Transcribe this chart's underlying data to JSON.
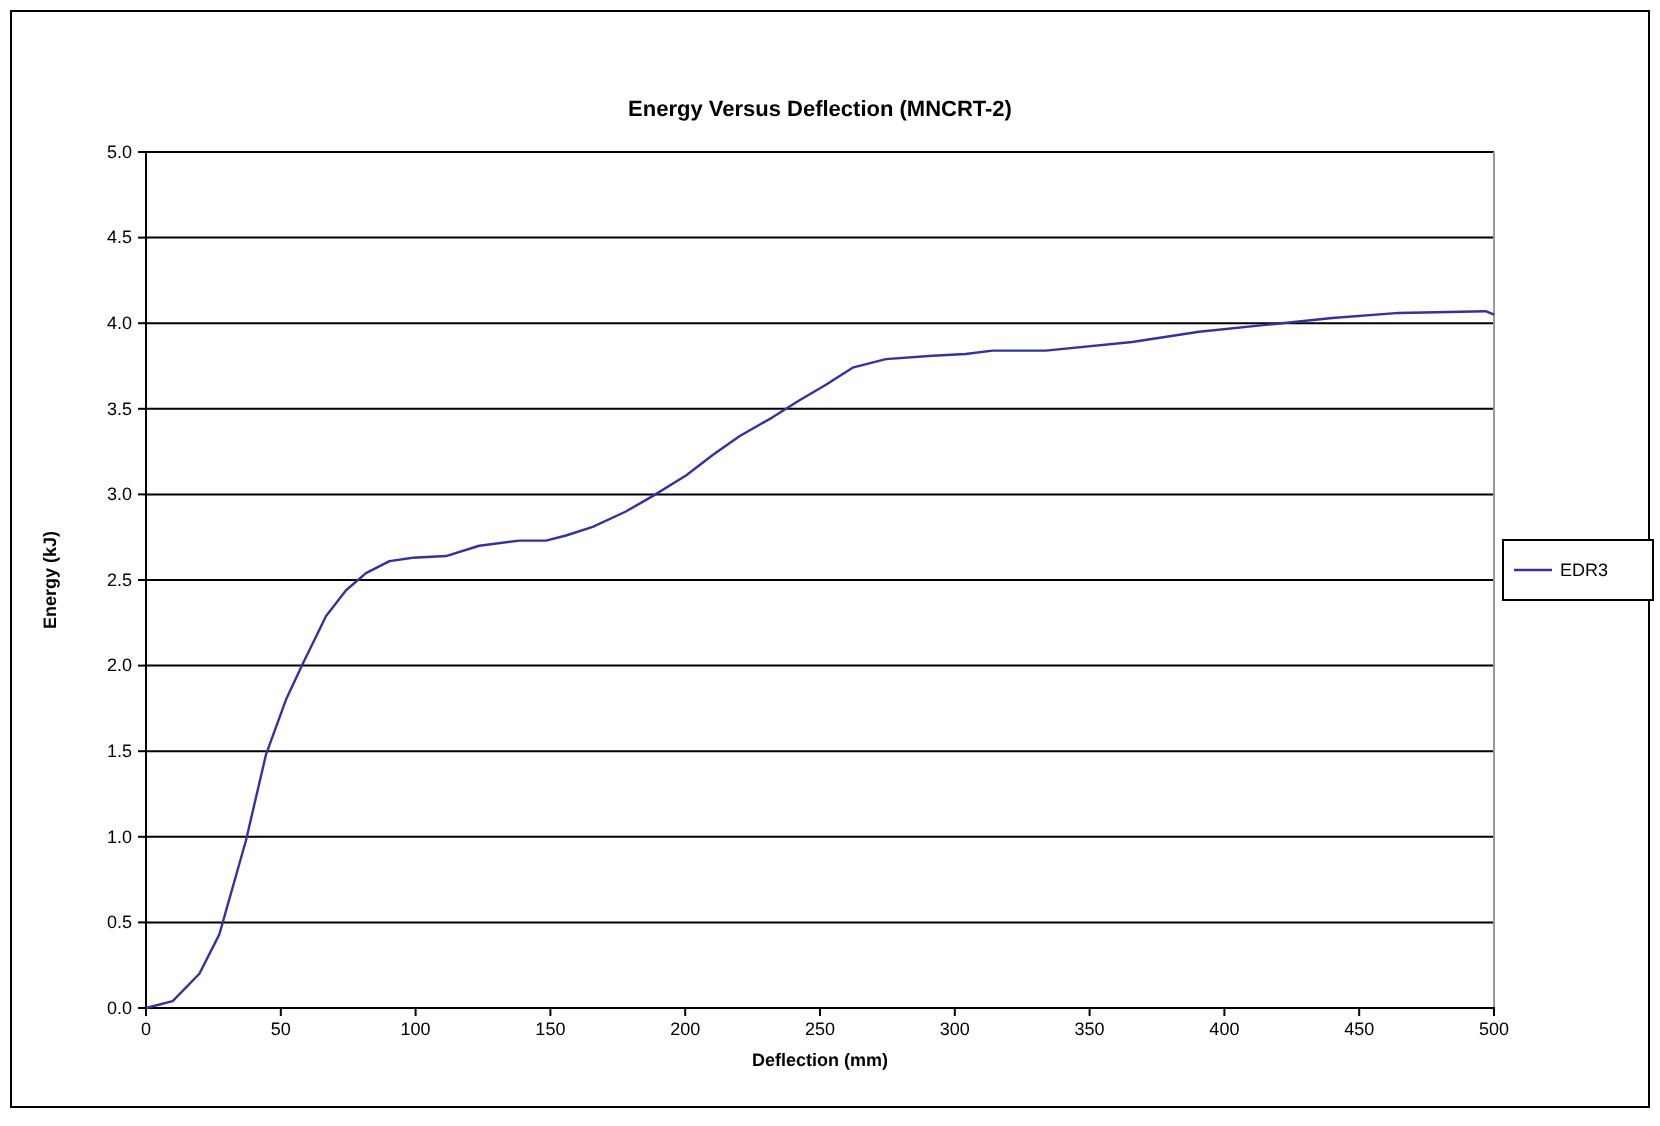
{
  "chart_data": {
    "type": "line",
    "title": "Energy Versus Deflection (MNCRT-2)",
    "xlabel": "Deflection (mm)",
    "ylabel": "Energy (kJ)",
    "x": [
      0,
      9.9,
      19.8,
      27.2,
      37.1,
      44.5,
      51.9,
      58.1,
      66.8,
      74.2,
      81.6,
      90.3,
      98.9,
      111.3,
      123.6,
      138.5,
      148.4,
      155.8,
      165.7,
      178,
      187.9,
      200.3,
      210.2,
      220.1,
      232.4,
      242.4,
      252.2,
      262.1,
      274.4,
      291.7,
      304,
      314,
      333.7,
      365.8,
      390.6,
      415.3,
      440,
      464.8,
      496.9,
      500
    ],
    "series": [
      {
        "name": "EDR3",
        "color": "#3333a0",
        "values": [
          0,
          0.04,
          0.2,
          0.43,
          0.98,
          1.48,
          1.8,
          2.01,
          2.29,
          2.44,
          2.54,
          2.61,
          2.63,
          2.64,
          2.7,
          2.73,
          2.73,
          2.76,
          2.81,
          2.9,
          2.99,
          3.11,
          3.23,
          3.34,
          3.45,
          3.55,
          3.64,
          3.74,
          3.79,
          3.81,
          3.82,
          3.84,
          3.84,
          3.89,
          3.95,
          3.99,
          4.03,
          4.06,
          4.07,
          4.05
        ]
      }
    ],
    "xlim": [
      0,
      500
    ],
    "xticks": [
      0,
      50,
      100,
      150,
      200,
      250,
      300,
      350,
      400,
      450,
      500
    ],
    "ylim": [
      0,
      5
    ],
    "yticks": [
      {
        "value": 0,
        "label": "0.0"
      },
      {
        "value": 0.5,
        "label": "0.5"
      },
      {
        "value": 1,
        "label": "1.0"
      },
      {
        "value": 1.5,
        "label": "1.5"
      },
      {
        "value": 2,
        "label": "2.0"
      },
      {
        "value": 2.5,
        "label": "2.5"
      },
      {
        "value": 3,
        "label": "3.0"
      },
      {
        "value": 3.5,
        "label": "3.5"
      },
      {
        "value": 4,
        "label": "4.0"
      },
      {
        "value": 4.5,
        "label": "4.5"
      },
      {
        "value": 5,
        "label": "5.0"
      }
    ],
    "grid": "y",
    "legend": "right",
    "marker": "none",
    "line_style": "solid"
  }
}
